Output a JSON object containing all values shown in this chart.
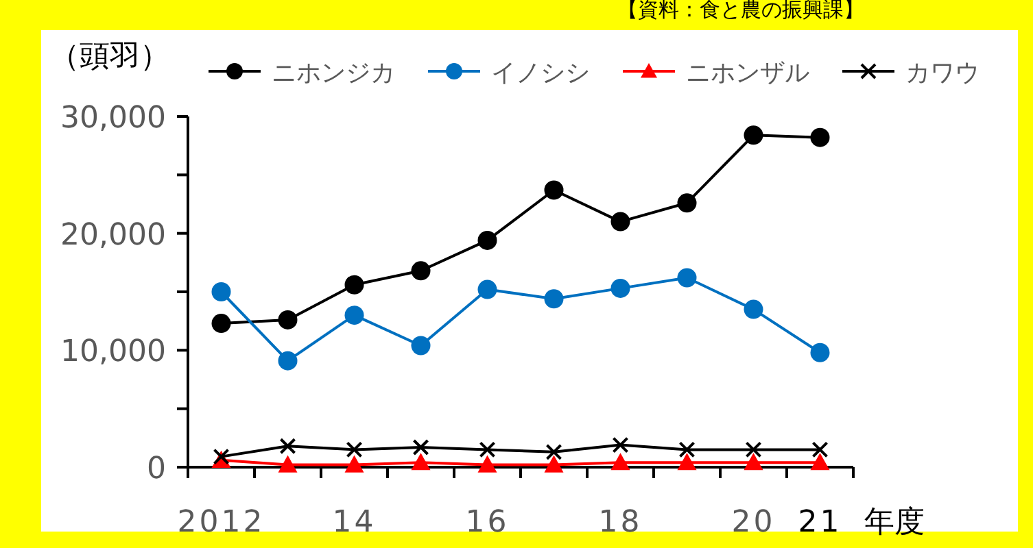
{
  "chart_data": {
    "type": "line",
    "ylabel": "（頭羽）",
    "xlabel": "年度",
    "annotations": [
      "【資料：食と農の振興課】"
    ],
    "categories": [
      "2012",
      null,
      "14",
      null,
      "16",
      null,
      "18",
      null,
      "20",
      "21"
    ],
    "series": [
      {
        "name": "ニホンジカ",
        "color": "#000000",
        "marker": "circle",
        "values": [
          12300,
          12600,
          15600,
          16800,
          19400,
          23700,
          21000,
          22600,
          28400,
          28200
        ]
      },
      {
        "name": "イノシシ",
        "color": "#0070c0",
        "marker": "circle",
        "values": [
          15000,
          9100,
          13000,
          10400,
          15200,
          14400,
          15300,
          16200,
          13500,
          9800
        ]
      },
      {
        "name": "ニホンザル",
        "color": "#ff0000",
        "marker": "triangle",
        "values": [
          600,
          200,
          200,
          400,
          200,
          200,
          400,
          400,
          400,
          400
        ]
      },
      {
        "name": "カワウ",
        "color": "#000000",
        "marker": "cross",
        "values": [
          900,
          1800,
          1500,
          1700,
          1500,
          1300,
          1900,
          1500,
          1500,
          1500
        ]
      }
    ],
    "ylim": [
      0,
      30000
    ],
    "yticks": [
      {
        "value": 0,
        "label": "0"
      },
      {
        "value": 5000,
        "label": null
      },
      {
        "value": 10000,
        "label": "10,000"
      },
      {
        "value": 15000,
        "label": null
      },
      {
        "value": 20000,
        "label": "20,000"
      },
      {
        "value": 25000,
        "label": null
      },
      {
        "value": 30000,
        "label": "30,000"
      }
    ],
    "grid": false,
    "legend": "top"
  }
}
